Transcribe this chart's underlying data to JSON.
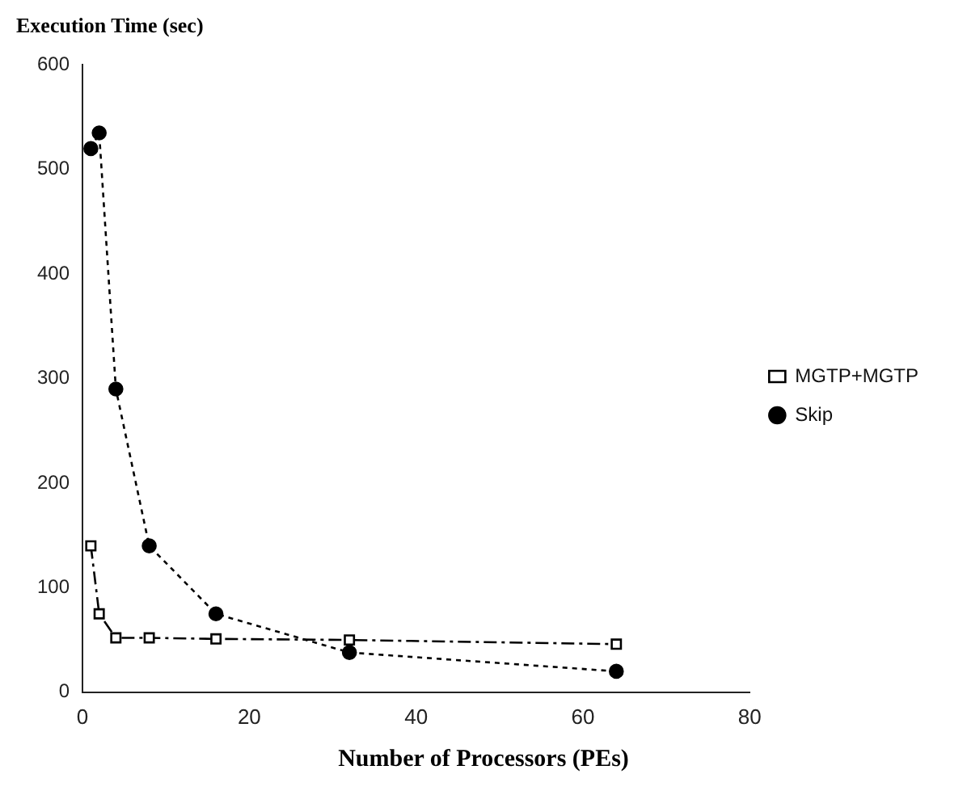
{
  "chart_data": {
    "type": "line",
    "ylabel": "Execution Time (sec)",
    "xlabel": "Number of Processors (PEs)",
    "x": [
      1,
      2,
      4,
      8,
      16,
      32,
      64
    ],
    "series": [
      {
        "name": "MGTP+MGTP",
        "color": "#000000",
        "values": [
          140,
          75,
          52,
          52,
          51,
          50,
          46
        ],
        "marker": "square",
        "line_style": "dashed"
      },
      {
        "name": "Skip",
        "color": "#000000",
        "values": [
          520,
          535,
          290,
          140,
          75,
          38,
          20
        ],
        "marker": "circle",
        "line_style": "dotted"
      }
    ],
    "xlim": [
      0,
      80
    ],
    "xticks": [
      0,
      20,
      40,
      60,
      80
    ],
    "ylim": [
      0,
      600
    ],
    "yticks": [
      0,
      100,
      200,
      300,
      400,
      500,
      600
    ],
    "grid": false,
    "legend": "right"
  }
}
